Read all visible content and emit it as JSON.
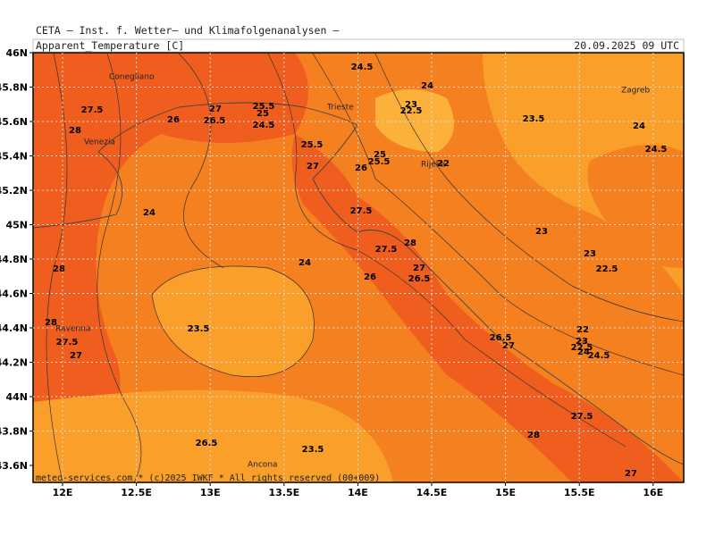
{
  "header": {
    "source": "CETA — Inst. f. Wetter— und Klimafolgenanalysen —",
    "variable": "Apparent_Temperature [C]",
    "timestamp": "20.09.2025 09 UTC"
  },
  "footer": "meteo-services.com * (c)2025 IWKF * All rights reserved (00+009)",
  "axes": {
    "lat_labels": [
      "46N",
      "45.8N",
      "45.6N",
      "45.4N",
      "45.2N",
      "45N",
      "44.8N",
      "44.6N",
      "44.4N",
      "44.2N",
      "44N",
      "43.8N",
      "43.6N"
    ],
    "lon_labels": [
      "12E",
      "12.5E",
      "13E",
      "13.5E",
      "14E",
      "14.5E",
      "15E",
      "15.5E",
      "16E"
    ]
  },
  "cities": [
    "Conegliano",
    "Venezia",
    "Trieste",
    "Rijeka",
    "Zagreb",
    "Ravenna",
    "Ancona"
  ],
  "contour_labels": [
    "24.5",
    "24",
    "27.5",
    "26",
    "27",
    "26.5",
    "25.5",
    "25",
    "24.5",
    "23",
    "22.5",
    "23.5",
    "24",
    "24.5",
    "28",
    "25.5",
    "27",
    "26",
    "25",
    "25.5",
    "22",
    "24",
    "27.5",
    "28",
    "27.5",
    "23",
    "23",
    "22.5",
    "28",
    "24",
    "26",
    "27",
    "26.5",
    "28",
    "23.5",
    "22",
    "27.5",
    "26.5",
    "27",
    "23",
    "22.5",
    "24",
    "24.5",
    "27",
    "27.5",
    "28",
    "26.5",
    "23.5",
    "27"
  ]
}
